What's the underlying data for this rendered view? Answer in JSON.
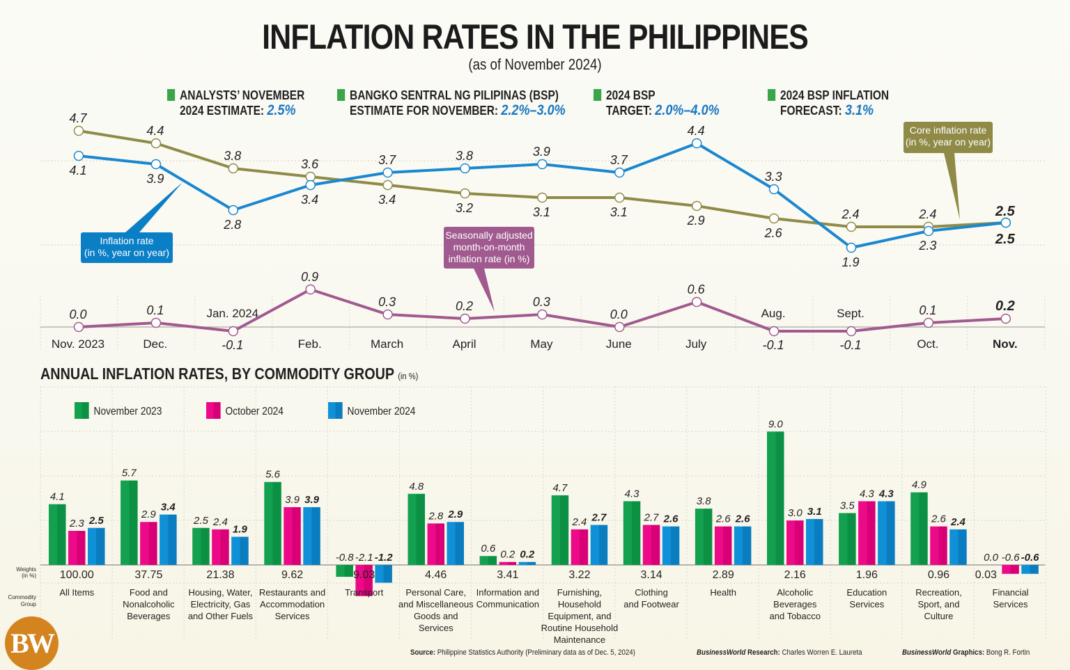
{
  "header": {
    "title": "INFLATION RATES IN THE PHILIPPINES",
    "subtitle": "(as of November 2024)"
  },
  "kpis": [
    {
      "line1": "ANALYSTS’ NOVEMBER",
      "line2_prefix": "2024 ESTIMATE: ",
      "value": "2.5%"
    },
    {
      "line1": "BANGKO SENTRAL NG PILIPINAS (BSP)",
      "line2_prefix": "ESTIMATE FOR NOVEMBER: ",
      "value": "2.2%–3.0%"
    },
    {
      "line1": "2024 BSP",
      "line2_prefix": "TARGET: ",
      "value": "2.0%–4.0%"
    },
    {
      "line1": "2024 BSP INFLATION",
      "line2_prefix": "FORECAST: ",
      "value": "3.1%"
    }
  ],
  "colors": {
    "headline": "#1a87cf",
    "core": "#8f8b47",
    "mom": "#a05a8f",
    "nov2023": "#0f9d4a",
    "oct2024": "#e6007e",
    "nov2024": "#0b85cc",
    "kpi_square": "#3aa649",
    "kpi_value": "#1a78c2",
    "logo": "#d4841f"
  },
  "callouts": {
    "headline": [
      "Inflation rate",
      "(in %, year on year)"
    ],
    "core": [
      "Core inflation rate",
      "(in %, year on year)"
    ],
    "mom": [
      "Seasonally adjusted",
      "month-on-month",
      "inflation rate (in %)"
    ]
  },
  "chart_data": [
    {
      "type": "line",
      "title": "Inflation rates (year on year)",
      "x": [
        "Nov. 2023",
        "Dec.",
        "Jan. 2024",
        "Feb.",
        "March",
        "April",
        "May",
        "June",
        "July",
        "Aug.",
        "Sept.",
        "Oct.",
        "Nov."
      ],
      "series": [
        {
          "name": "Inflation rate (in %, year on year)",
          "values": [
            4.1,
            3.9,
            2.8,
            3.4,
            3.7,
            3.8,
            3.9,
            3.7,
            4.4,
            3.3,
            1.9,
            2.3,
            2.5
          ]
        },
        {
          "name": "Core inflation rate (in %, year on year)",
          "values": [
            4.7,
            4.4,
            3.8,
            3.6,
            3.4,
            3.2,
            3.1,
            3.1,
            2.9,
            2.6,
            2.4,
            2.4,
            2.5
          ]
        }
      ],
      "grid": true
    },
    {
      "type": "line",
      "title": "Seasonally adjusted month-on-month inflation rate (in %)",
      "x": [
        "Nov. 2023",
        "Dec.",
        "Jan. 2024",
        "Feb.",
        "March",
        "April",
        "May",
        "June",
        "July",
        "Aug.",
        "Sept.",
        "Oct.",
        "Nov."
      ],
      "series": [
        {
          "name": "Seasonally adjusted month-on-month inflation rate (in %)",
          "values": [
            0.0,
            0.1,
            -0.1,
            0.9,
            0.3,
            0.2,
            0.3,
            0.0,
            0.6,
            -0.1,
            -0.1,
            0.1,
            0.2
          ]
        }
      ]
    },
    {
      "type": "bar",
      "title": "ANNUAL INFLATION RATES, BY COMMODITY GROUP",
      "title_unit": "(in %)",
      "row_labels": {
        "weights": [
          "Weights",
          "(in %)"
        ],
        "group": [
          "Commodity",
          "Group"
        ]
      },
      "categories": [
        {
          "name": [
            "All Items"
          ],
          "weight": "100.00"
        },
        {
          "name": [
            "Food and",
            "Nonalcoholic",
            "Beverages"
          ],
          "weight": "37.75"
        },
        {
          "name": [
            "Housing, Water,",
            "Electricity, Gas",
            "and Other Fuels"
          ],
          "weight": "21.38"
        },
        {
          "name": [
            "Restaurants and",
            "Accommodation",
            "Services"
          ],
          "weight": "9.62"
        },
        {
          "name": [
            "Transport"
          ],
          "weight": "9.03"
        },
        {
          "name": [
            "Personal Care,",
            "and Miscellaneous",
            "Goods and",
            "Services"
          ],
          "weight": "4.46"
        },
        {
          "name": [
            "Information and",
            "Communication"
          ],
          "weight": "3.41"
        },
        {
          "name": [
            "Furnishing,",
            "Household",
            "Equipment, and",
            "Routine Household",
            "Maintenance"
          ],
          "weight": "3.22"
        },
        {
          "name": [
            "Clothing",
            "and Footwear"
          ],
          "weight": "3.14"
        },
        {
          "name": [
            "Health"
          ],
          "weight": "2.89"
        },
        {
          "name": [
            "Alcoholic",
            "Beverages",
            "and Tobacco"
          ],
          "weight": "2.16"
        },
        {
          "name": [
            "Education",
            "Services"
          ],
          "weight": "1.96"
        },
        {
          "name": [
            "Recreation,",
            "Sport, and",
            "Culture"
          ],
          "weight": "0.96"
        },
        {
          "name": [
            "Financial",
            "Services"
          ],
          "weight": "0.03"
        }
      ],
      "series": [
        {
          "name": "November 2023",
          "values": [
            4.1,
            5.7,
            2.5,
            5.6,
            -0.8,
            4.8,
            0.6,
            4.7,
            4.3,
            3.8,
            9.0,
            3.5,
            4.9,
            0.0
          ]
        },
        {
          "name": "October 2024",
          "values": [
            2.3,
            2.9,
            2.4,
            3.9,
            -2.1,
            2.8,
            0.2,
            2.4,
            2.7,
            2.6,
            3.0,
            4.3,
            2.6,
            -0.6
          ]
        },
        {
          "name": "November 2024",
          "values": [
            2.5,
            3.4,
            1.9,
            3.9,
            -1.2,
            2.9,
            0.2,
            2.7,
            2.6,
            2.6,
            3.1,
            4.3,
            2.4,
            -0.6
          ]
        }
      ],
      "legend": "top-left",
      "grid": true
    }
  ],
  "footer": {
    "source_label": "Source:",
    "source_text": "Philippine Statistics Authority (Preliminary data as of Dec. 5, 2024)",
    "research_brand": "BusinessWorld",
    "research_label": "Research:",
    "research_name": "Charles Worren E. Laureta",
    "graphics_brand": "BusinessWorld",
    "graphics_label": "Graphics:",
    "graphics_name": "Bong R. Fortin"
  },
  "logo": {
    "text": "BW"
  }
}
